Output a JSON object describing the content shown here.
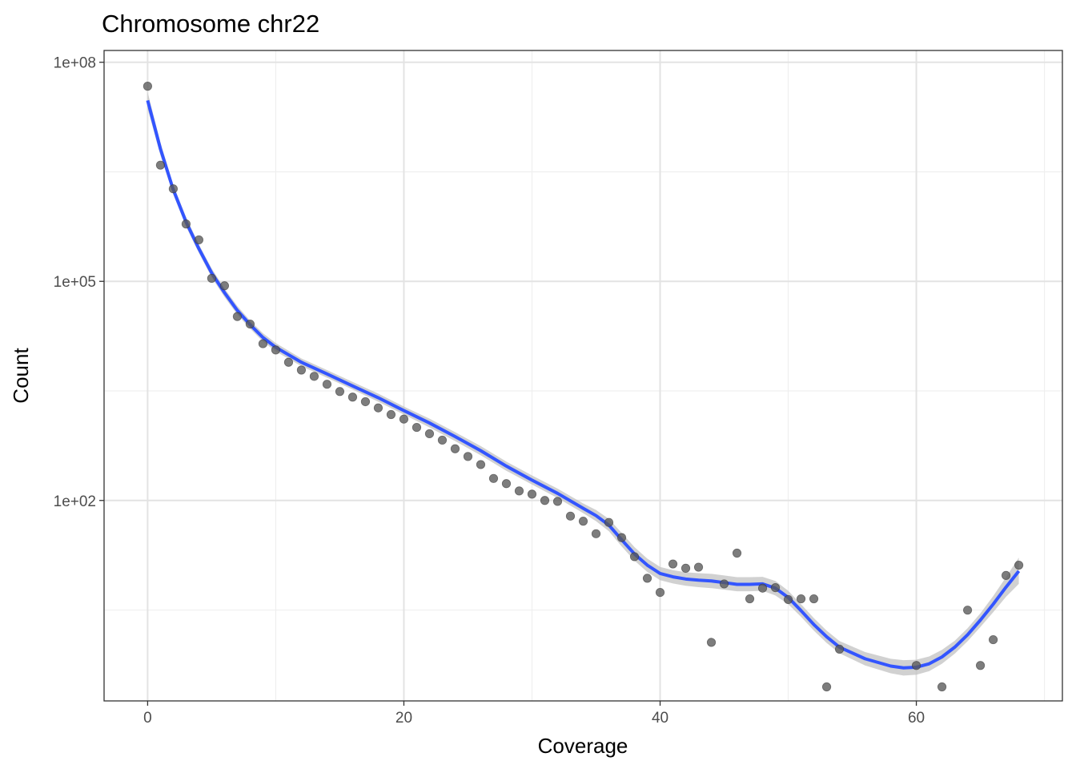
{
  "chart_data": {
    "type": "scatter",
    "title": "Chromosome chr22",
    "xlabel": "Coverage",
    "ylabel": "Count",
    "xlim": [
      -3.4,
      71.4
    ],
    "ylim": [
      0.18,
      145000000
    ],
    "y_scale": "log10",
    "x_ticks": [
      0,
      20,
      40,
      60
    ],
    "x_minor_ticks": [
      10,
      30,
      50,
      70
    ],
    "y_ticks": [
      100000000,
      100000,
      100
    ],
    "y_tick_labels": [
      "1e+08",
      "1e+05",
      "1e+02"
    ],
    "y_minor_ticks": [
      3162277.66,
      3162.28,
      3.16
    ],
    "grid": true,
    "legend": "none",
    "colors": {
      "points": "#595959",
      "smooth_line": "#3355ff",
      "confidence_band": "#c2c2c2",
      "grid_major": "#e3e3e3",
      "grid_minor": "#efefef",
      "panel_border": "#333333"
    },
    "series": [
      {
        "x": [
          0,
          1,
          2,
          3,
          4,
          5,
          6,
          7,
          8,
          9,
          10,
          11,
          12,
          13,
          14,
          15,
          16,
          17,
          18,
          19,
          20,
          21,
          22,
          23,
          24,
          25,
          26,
          27,
          28,
          29,
          30,
          31,
          32,
          33,
          34,
          35,
          36,
          37,
          38,
          39,
          40,
          41,
          42,
          43,
          44,
          45,
          46,
          47,
          48,
          49,
          50,
          51,
          52,
          53,
          54,
          60,
          62,
          64,
          65,
          66,
          67,
          68
        ],
        "y": [
          47000000,
          3900000,
          1850000,
          610000,
          370000,
          110000,
          87000,
          33000,
          26000,
          14000,
          11500,
          7800,
          6100,
          5000,
          3900,
          3100,
          2600,
          2250,
          1850,
          1500,
          1300,
          1000,
          820,
          670,
          510,
          400,
          310,
          200,
          170,
          135,
          122,
          100,
          97,
          61,
          52,
          35,
          50,
          31,
          17,
          8.6,
          5.5,
          13.5,
          11.8,
          12.2,
          1.14,
          7.2,
          19,
          4.5,
          6.3,
          6.4,
          4.4,
          4.5,
          4.5,
          0.28,
          0.92,
          0.55,
          0.28,
          3.15,
          0.55,
          1.24,
          9.4,
          13
        ]
      },
      {
        "x": [
          0,
          1,
          2,
          3,
          4,
          5,
          6,
          7,
          8,
          9,
          10,
          12,
          14,
          16,
          18,
          20,
          22,
          24,
          26,
          28,
          30,
          32,
          34,
          35,
          36,
          37,
          38,
          39,
          40,
          41,
          42,
          43,
          44,
          45,
          46,
          47,
          48,
          49,
          50,
          51,
          52,
          53,
          54,
          56,
          58,
          59,
          60,
          61,
          62,
          63,
          64,
          65,
          66,
          67,
          68
        ],
        "y": [
          30000000,
          6500000,
          1800000,
          650000,
          280000,
          130000,
          70000,
          40000,
          25500,
          17000,
          12500,
          7800,
          5400,
          3700,
          2550,
          1700,
          1150,
          750,
          480,
          295,
          190,
          125,
          78,
          62,
          46,
          29,
          18.5,
          13,
          10,
          9,
          8.4,
          8.1,
          7.9,
          7.5,
          7.1,
          7.1,
          7.2,
          6.3,
          4.7,
          3.1,
          2.0,
          1.36,
          0.98,
          0.68,
          0.54,
          0.51,
          0.52,
          0.58,
          0.72,
          0.98,
          1.45,
          2.3,
          3.8,
          6.5,
          10.8
        ],
        "band_lower": [
          23000000,
          5300000,
          1550000,
          560000,
          245000,
          113000,
          61000,
          35000,
          22500,
          15000,
          11000,
          6900,
          4800,
          3300,
          2250,
          1500,
          1000,
          650,
          415,
          255,
          165,
          108,
          67,
          52,
          38,
          23.5,
          15,
          10.5,
          8.1,
          7.3,
          6.8,
          6.5,
          6.3,
          6.0,
          5.7,
          5.7,
          5.8,
          5.0,
          3.8,
          2.55,
          1.65,
          1.12,
          0.81,
          0.55,
          0.43,
          0.4,
          0.41,
          0.46,
          0.58,
          0.8,
          1.18,
          1.85,
          2.95,
          4.8,
          7.2
        ],
        "band_upper": [
          39000000,
          8000000,
          2100000,
          760000,
          320000,
          150000,
          80000,
          46000,
          29000,
          19500,
          14300,
          8800,
          6100,
          4200,
          2900,
          1930,
          1320,
          860,
          555,
          340,
          220,
          145,
          91,
          74,
          56,
          36,
          23,
          16,
          12.3,
          11.1,
          10.4,
          10.1,
          9.9,
          9.4,
          8.9,
          8.9,
          9.0,
          7.9,
          5.8,
          3.8,
          2.45,
          1.65,
          1.19,
          0.84,
          0.68,
          0.65,
          0.66,
          0.73,
          0.9,
          1.2,
          1.78,
          2.85,
          4.9,
          8.9,
          16.5
        ]
      }
    ]
  }
}
